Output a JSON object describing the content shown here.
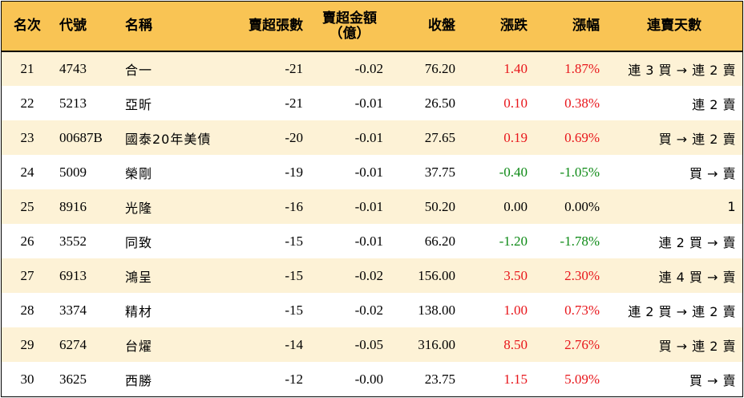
{
  "headers": {
    "rank": "名次",
    "code": "代號",
    "name": "名稱",
    "net_sell_lots": "賣超張數",
    "net_sell_amount_line1": "賣超金額",
    "net_sell_amount_line2": "（億）",
    "close": "收盤",
    "change": "漲跌",
    "change_pct": "漲幅",
    "streak": "連賣天數"
  },
  "rows": [
    {
      "rank": "21",
      "code": "4743",
      "name": "合一",
      "lots": "-21",
      "amount": "-0.02",
      "close": "76.20",
      "change": "1.40",
      "pct": "1.87%",
      "trend": "up",
      "streak": "連 3 買 → 連 2 賣"
    },
    {
      "rank": "22",
      "code": "5213",
      "name": "亞昕",
      "lots": "-21",
      "amount": "-0.01",
      "close": "26.50",
      "change": "0.10",
      "pct": "0.38%",
      "trend": "up",
      "streak": "連 2 賣"
    },
    {
      "rank": "23",
      "code": "00687B",
      "name": "國泰20年美債",
      "lots": "-20",
      "amount": "-0.01",
      "close": "27.65",
      "change": "0.19",
      "pct": "0.69%",
      "trend": "up",
      "streak": "買 → 連 2 賣"
    },
    {
      "rank": "24",
      "code": "5009",
      "name": "榮剛",
      "lots": "-19",
      "amount": "-0.01",
      "close": "37.75",
      "change": "-0.40",
      "pct": "-1.05%",
      "trend": "down",
      "streak": "買 → 賣"
    },
    {
      "rank": "25",
      "code": "8916",
      "name": "光隆",
      "lots": "-16",
      "amount": "-0.01",
      "close": "50.20",
      "change": "0.00",
      "pct": "0.00%",
      "trend": "flat",
      "streak": "1"
    },
    {
      "rank": "26",
      "code": "3552",
      "name": "同致",
      "lots": "-15",
      "amount": "-0.01",
      "close": "66.20",
      "change": "-1.20",
      "pct": "-1.78%",
      "trend": "down",
      "streak": "連 2 買 → 賣"
    },
    {
      "rank": "27",
      "code": "6913",
      "name": "鴻呈",
      "lots": "-15",
      "amount": "-0.02",
      "close": "156.00",
      "change": "3.50",
      "pct": "2.30%",
      "trend": "up",
      "streak": "連 4 買 → 賣"
    },
    {
      "rank": "28",
      "code": "3374",
      "name": "精材",
      "lots": "-15",
      "amount": "-0.02",
      "close": "138.00",
      "change": "1.00",
      "pct": "0.73%",
      "trend": "up",
      "streak": "連 2 買 → 連 2 賣"
    },
    {
      "rank": "29",
      "code": "6274",
      "name": "台燿",
      "lots": "-14",
      "amount": "-0.05",
      "close": "316.00",
      "change": "8.50",
      "pct": "2.76%",
      "trend": "up",
      "streak": "買 → 連 2 賣"
    },
    {
      "rank": "30",
      "code": "3625",
      "name": "西勝",
      "lots": "-12",
      "amount": "-0.00",
      "close": "23.75",
      "change": "1.15",
      "pct": "5.09%",
      "trend": "up",
      "streak": "買 → 賣"
    }
  ],
  "colors": {
    "header_bg": "#f9c454",
    "odd_row_bg": "#fdf2d6",
    "up": "#e8161b",
    "down": "#0e8a16"
  }
}
